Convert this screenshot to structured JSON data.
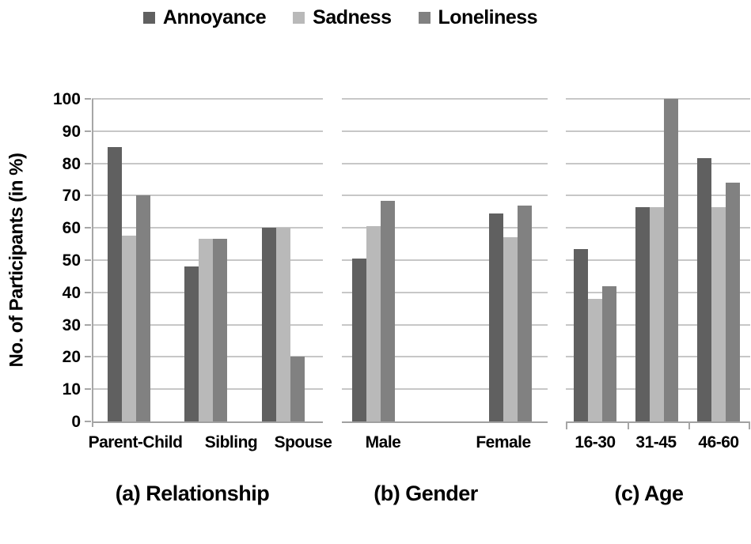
{
  "legend": [
    {
      "label": "Annoyance",
      "color": "#606060"
    },
    {
      "label": "Sadness",
      "color": "#b9b9b9"
    },
    {
      "label": "Loneliness",
      "color": "#818181"
    }
  ],
  "y_axis": {
    "title": "No. of Participants (in %)",
    "ticks": [
      0,
      10,
      20,
      30,
      40,
      50,
      60,
      70,
      80,
      90,
      100
    ]
  },
  "chart_data": {
    "type": "bar",
    "title": "",
    "ylabel": "No. of Participants (in %)",
    "ylim": [
      0,
      100
    ],
    "grid": true,
    "legend_position": "top",
    "series_names": [
      "Annoyance",
      "Sadness",
      "Loneliness"
    ],
    "panels": [
      {
        "caption": "(a) Relationship",
        "categories": [
          "Parent-Child",
          "Sibling",
          "Spouse"
        ],
        "series": [
          {
            "name": "Annoyance",
            "values": [
              85,
              48,
              60
            ]
          },
          {
            "name": "Sadness",
            "values": [
              57.5,
              56.5,
              60
            ]
          },
          {
            "name": "Loneliness",
            "values": [
              70,
              56.5,
              20
            ]
          }
        ]
      },
      {
        "caption": "(b) Gender",
        "categories": [
          "Male",
          "Female"
        ],
        "series": [
          {
            "name": "Annoyance",
            "values": [
              50.5,
              64.5
            ]
          },
          {
            "name": "Sadness",
            "values": [
              60.5,
              57
            ]
          },
          {
            "name": "Loneliness",
            "values": [
              68.5,
              67
            ]
          }
        ]
      },
      {
        "caption": "(c) Age",
        "categories": [
          "16-30",
          "31-45",
          "46-60"
        ],
        "series": [
          {
            "name": "Annoyance",
            "values": [
              53.5,
              66.5,
              81.5
            ]
          },
          {
            "name": "Sadness",
            "values": [
              38,
              66.5,
              66.5
            ]
          },
          {
            "name": "Loneliness",
            "values": [
              42,
              100,
              74
            ]
          }
        ]
      }
    ]
  },
  "colors": {
    "annoyance": "#606060",
    "sadness": "#b9b9b9",
    "loneliness": "#818181",
    "gridline": "#c7c7c7",
    "axis": "#a6a6a6",
    "text": "#000000"
  }
}
